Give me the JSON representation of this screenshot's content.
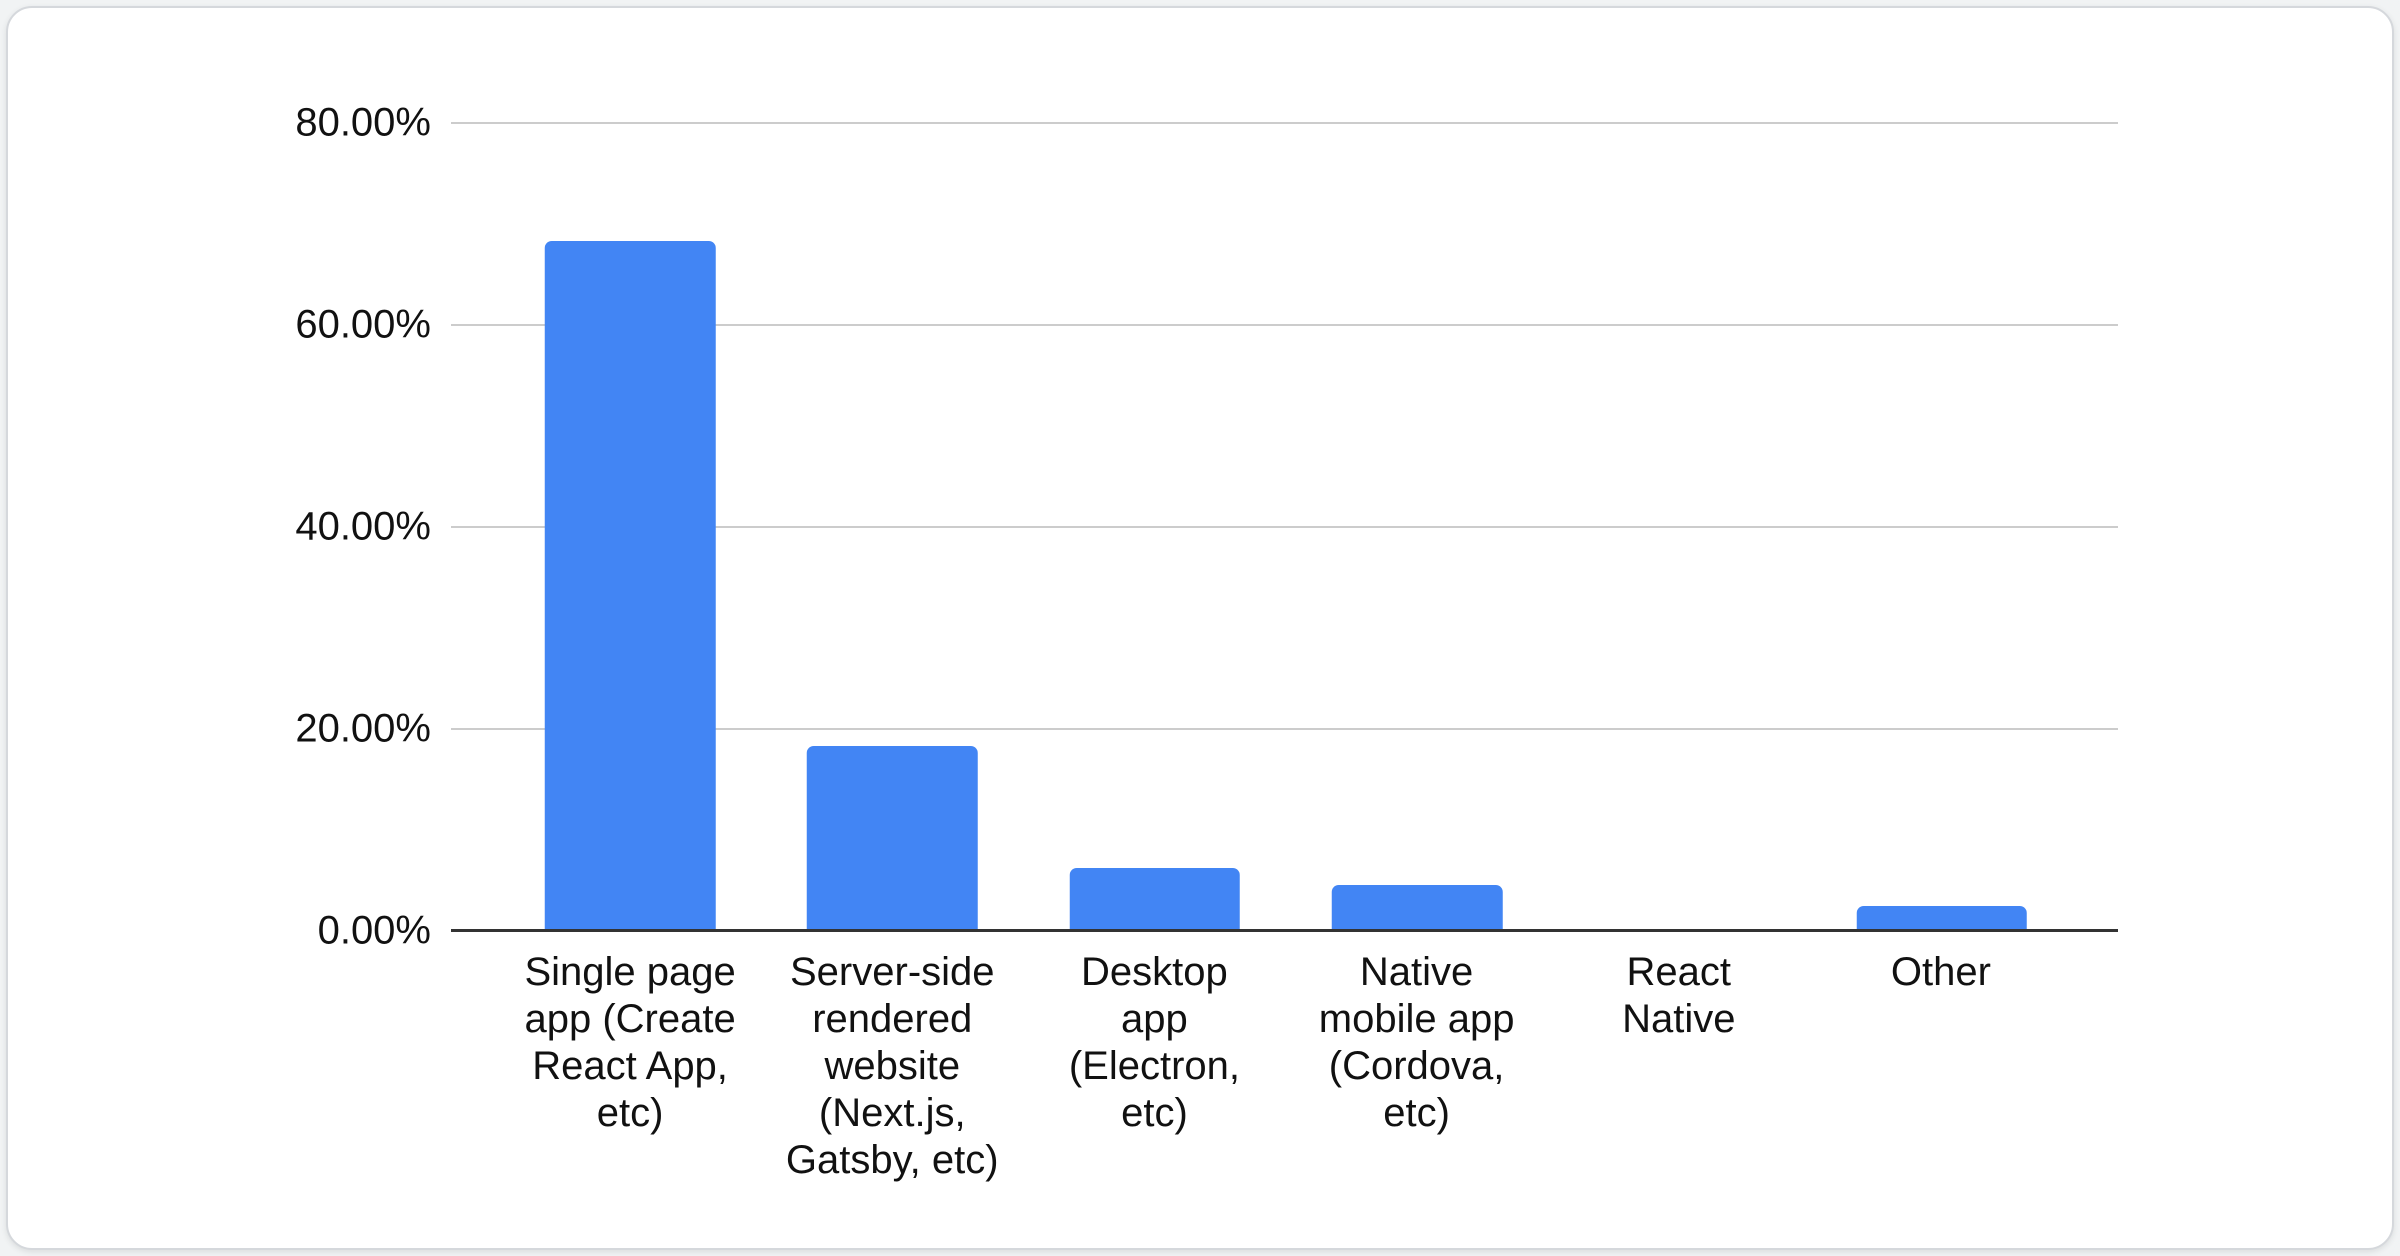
{
  "card": {
    "background": "#ffffff",
    "border_color": "#d5d8dc"
  },
  "chart_data": {
    "type": "bar",
    "title": "",
    "xlabel": "",
    "ylabel": "",
    "categories": [
      "Single page app (Create React App, etc)",
      "Server-side rendered website (Next.js, Gatsby, etc)",
      "Desktop app (Electron, etc)",
      "Native mobile app (Cordova, etc)",
      "React Native",
      "Other"
    ],
    "categories_display": [
      "Single page\napp (Create\nReact App,\netc)",
      "Server-side\nrendered\nwebsite\n(Next.js,\nGatsby, etc)",
      "Desktop\napp\n(Electron,\netc)",
      "Native\nmobile app\n(Cordova,\netc)",
      "React\nNative",
      "Other"
    ],
    "values": [
      68.3,
      18.3,
      6.2,
      4.6,
      0,
      2.5
    ],
    "value_unit": "%",
    "yticks": [
      "80.00%",
      "60.00%",
      "40.00%",
      "20.00%",
      "0.00%"
    ],
    "ylim": [
      0,
      80
    ],
    "grid": true,
    "legend": "none",
    "bar_color": "#4285f4",
    "gridline_color": "#cccccc",
    "axis_color": "#333333"
  }
}
